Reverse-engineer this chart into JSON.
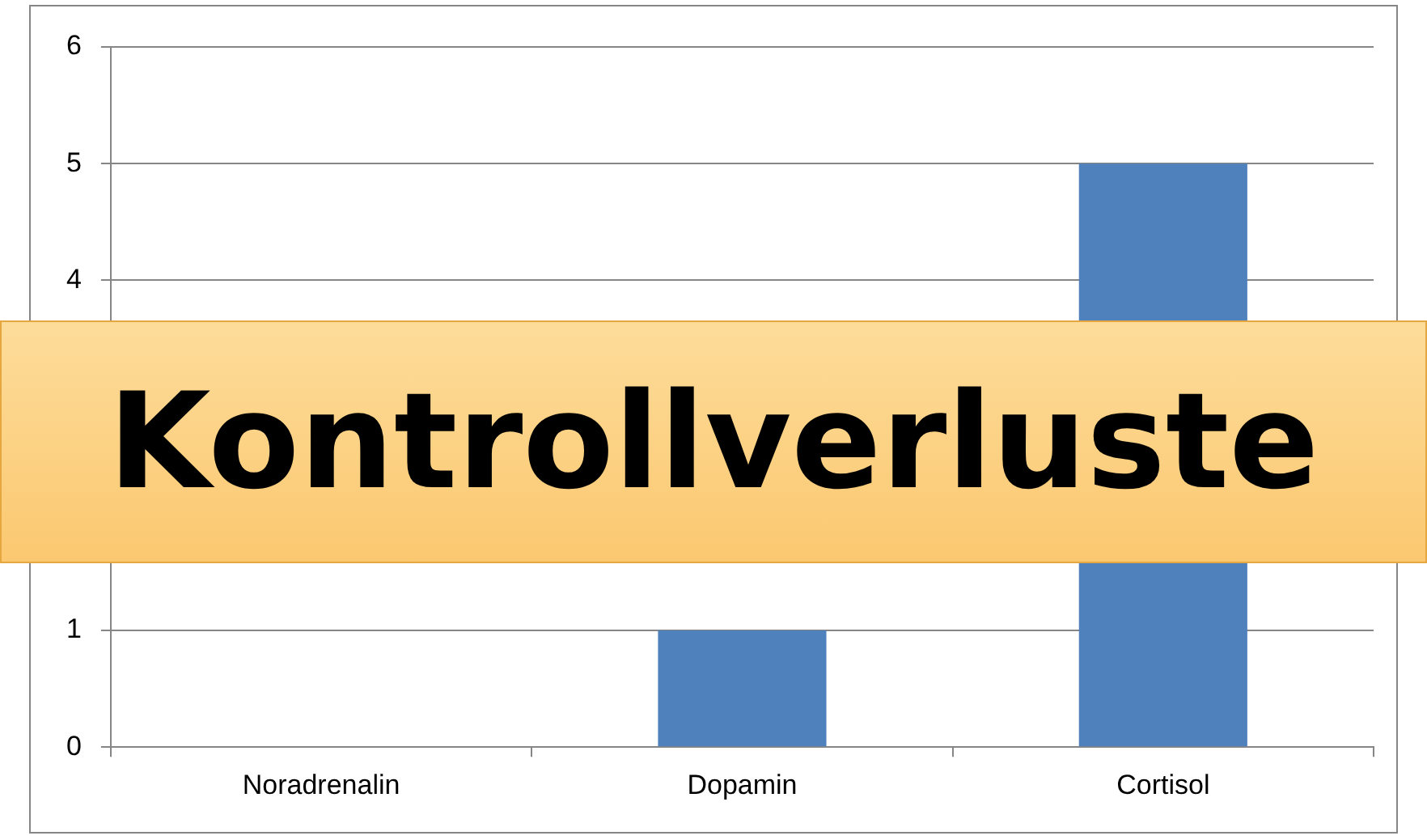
{
  "chart_data": {
    "type": "bar",
    "title": "Kontrollverluste",
    "categories": [
      "Noradrenalin",
      "Dopamin",
      "Cortisol"
    ],
    "values": [
      null,
      1,
      5
    ],
    "color": "#4f81bd",
    "ylim": [
      0,
      6
    ],
    "yticks": [
      0,
      1,
      4,
      5,
      6
    ],
    "grid": "y",
    "legend": false
  }
}
